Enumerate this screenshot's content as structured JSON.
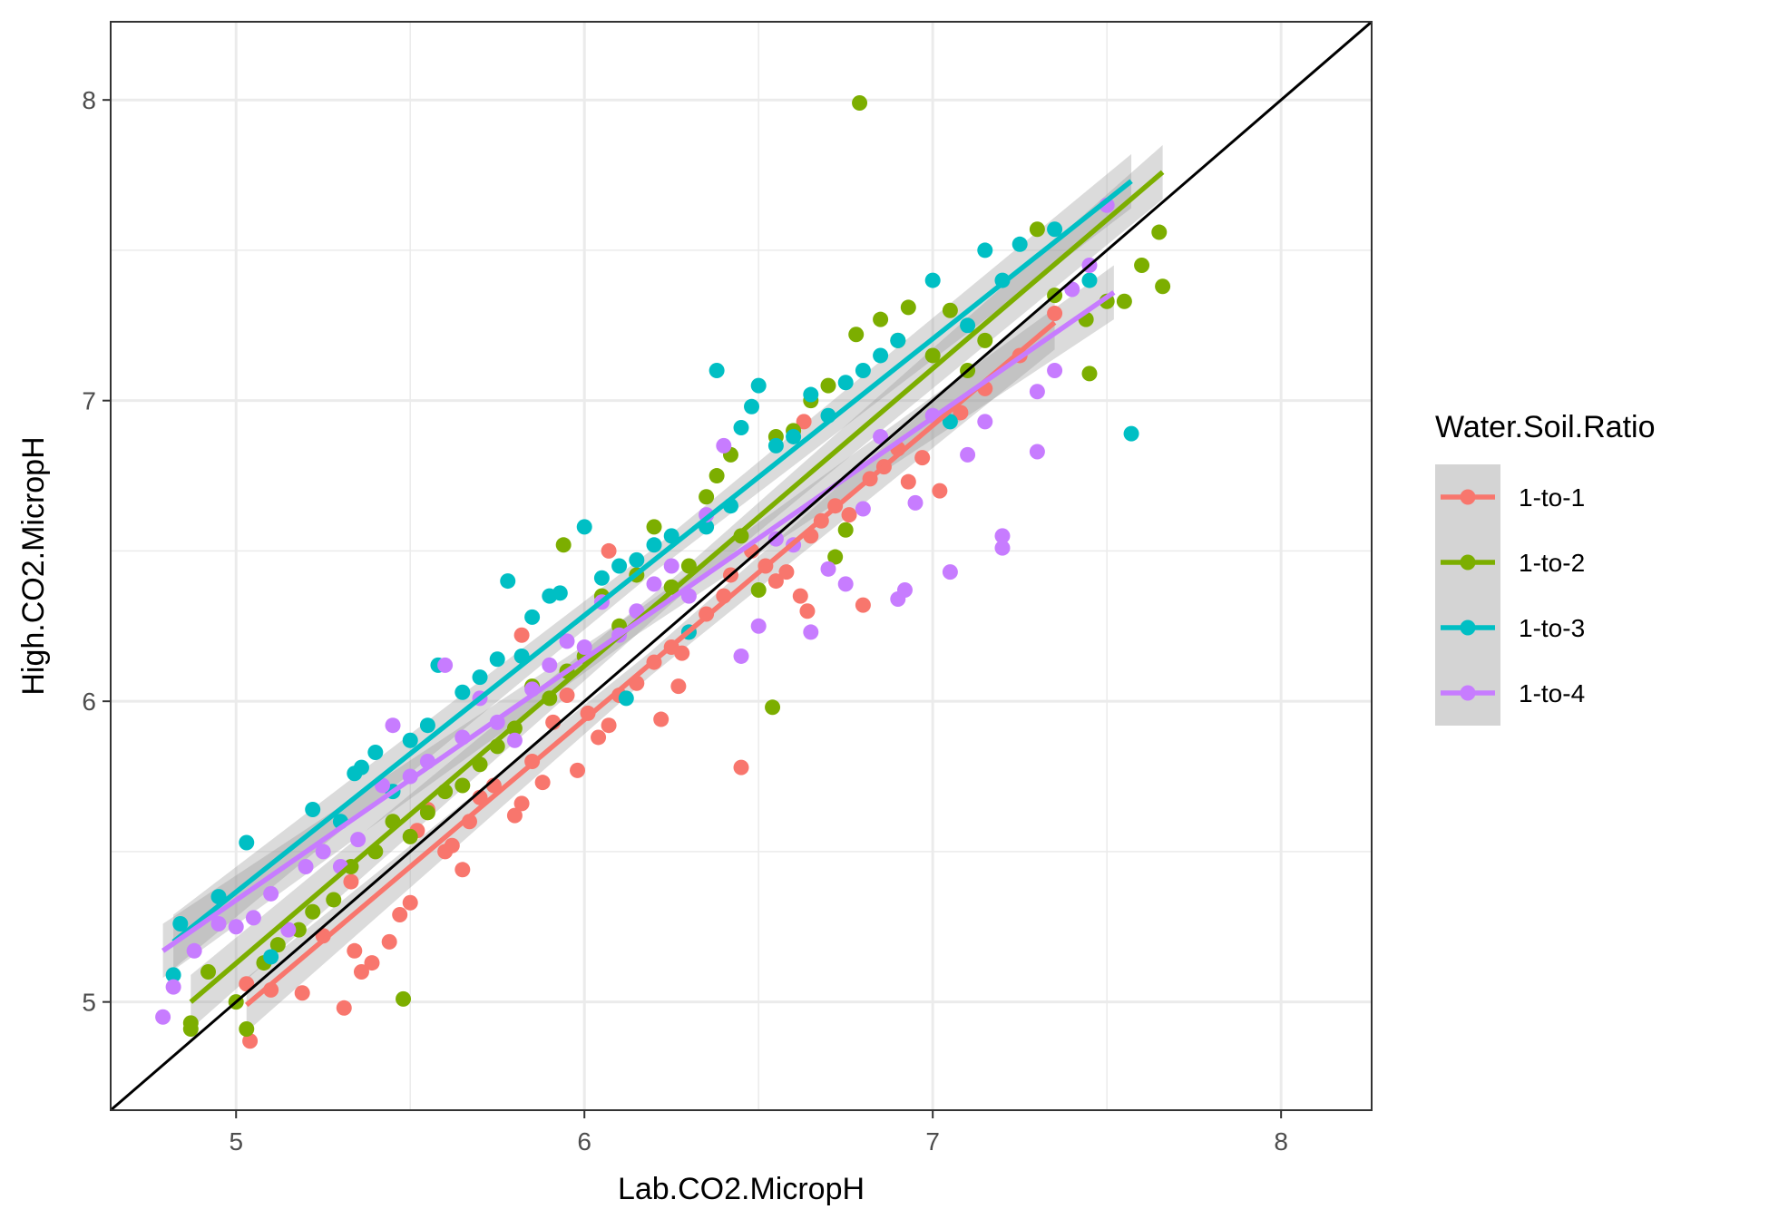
{
  "chart_data": {
    "type": "scatter",
    "xlabel": "Lab.CO2.MicropH",
    "ylabel": "High.CO2.MicropH",
    "xlim": [
      4.64,
      8.26
    ],
    "ylim": [
      4.64,
      8.26
    ],
    "x_ticks": [
      5,
      6,
      7,
      8
    ],
    "y_ticks": [
      5,
      6,
      7,
      8
    ],
    "x_tick_labels": [
      "5",
      "6",
      "7",
      "8"
    ],
    "y_tick_labels": [
      "5",
      "6",
      "7",
      "8"
    ],
    "grid": true,
    "reference_line": "y = x",
    "legend": {
      "title": "Water.Soil.Ratio",
      "placement": "right"
    },
    "series": [
      {
        "name": "1-to-1",
        "color": "#F8766D",
        "fit": {
          "x": [
            5.03,
            7.35
          ],
          "y": [
            4.99,
            7.26
          ]
        },
        "points": [
          [
            5.03,
            5.06
          ],
          [
            5.04,
            4.87
          ],
          [
            5.1,
            5.04
          ],
          [
            5.19,
            5.03
          ],
          [
            5.25,
            5.22
          ],
          [
            5.31,
            4.98
          ],
          [
            5.33,
            5.4
          ],
          [
            5.34,
            5.17
          ],
          [
            5.36,
            5.1
          ],
          [
            5.39,
            5.13
          ],
          [
            5.44,
            5.2
          ],
          [
            5.47,
            5.29
          ],
          [
            5.5,
            5.33
          ],
          [
            5.52,
            5.57
          ],
          [
            5.55,
            5.64
          ],
          [
            5.6,
            5.5
          ],
          [
            5.62,
            5.52
          ],
          [
            5.65,
            5.44
          ],
          [
            5.67,
            5.6
          ],
          [
            5.7,
            5.68
          ],
          [
            5.74,
            5.72
          ],
          [
            5.8,
            5.62
          ],
          [
            5.82,
            5.66
          ],
          [
            5.85,
            5.8
          ],
          [
            5.88,
            5.73
          ],
          [
            5.91,
            5.93
          ],
          [
            5.95,
            6.02
          ],
          [
            5.98,
            5.77
          ],
          [
            6.01,
            5.96
          ],
          [
            6.04,
            5.88
          ],
          [
            6.07,
            5.92
          ],
          [
            6.1,
            6.02
          ],
          [
            6.15,
            6.06
          ],
          [
            6.2,
            6.13
          ],
          [
            6.22,
            5.94
          ],
          [
            6.25,
            6.18
          ],
          [
            6.27,
            6.05
          ],
          [
            6.3,
            6.23
          ],
          [
            6.35,
            6.29
          ],
          [
            6.4,
            6.35
          ],
          [
            6.42,
            6.42
          ],
          [
            6.45,
            5.78
          ],
          [
            6.48,
            6.5
          ],
          [
            6.52,
            6.45
          ],
          [
            6.55,
            6.4
          ],
          [
            6.58,
            6.43
          ],
          [
            6.62,
            6.35
          ],
          [
            6.64,
            6.3
          ],
          [
            6.65,
            6.55
          ],
          [
            6.68,
            6.6
          ],
          [
            6.72,
            6.65
          ],
          [
            6.76,
            6.62
          ],
          [
            6.8,
            6.32
          ],
          [
            6.82,
            6.74
          ],
          [
            6.86,
            6.78
          ],
          [
            6.9,
            6.84
          ],
          [
            6.93,
            6.73
          ],
          [
            6.97,
            6.81
          ],
          [
            7.02,
            6.7
          ],
          [
            7.08,
            6.96
          ],
          [
            7.15,
            7.04
          ],
          [
            7.25,
            7.15
          ],
          [
            7.35,
            7.29
          ],
          [
            5.82,
            6.22
          ],
          [
            6.07,
            6.5
          ],
          [
            6.63,
            6.93
          ],
          [
            6.28,
            6.16
          ]
        ]
      },
      {
        "name": "1-to-2",
        "color": "#7CAE00",
        "fit": {
          "x": [
            4.87,
            7.66
          ],
          "y": [
            5.0,
            7.76
          ]
        },
        "points": [
          [
            4.87,
            4.93
          ],
          [
            4.87,
            4.91
          ],
          [
            4.92,
            5.1
          ],
          [
            5.0,
            5.0
          ],
          [
            5.03,
            4.91
          ],
          [
            5.08,
            5.13
          ],
          [
            5.12,
            5.19
          ],
          [
            5.18,
            5.24
          ],
          [
            5.22,
            5.3
          ],
          [
            5.28,
            5.34
          ],
          [
            5.33,
            5.45
          ],
          [
            5.4,
            5.5
          ],
          [
            5.45,
            5.6
          ],
          [
            5.48,
            5.01
          ],
          [
            5.5,
            5.55
          ],
          [
            5.55,
            5.63
          ],
          [
            5.6,
            5.7
          ],
          [
            5.65,
            5.72
          ],
          [
            5.7,
            5.79
          ],
          [
            5.75,
            5.85
          ],
          [
            5.8,
            5.91
          ],
          [
            5.85,
            6.05
          ],
          [
            5.9,
            6.01
          ],
          [
            5.94,
            6.52
          ],
          [
            5.95,
            6.1
          ],
          [
            6.0,
            6.15
          ],
          [
            6.05,
            6.35
          ],
          [
            6.1,
            6.25
          ],
          [
            6.15,
            6.42
          ],
          [
            6.2,
            6.58
          ],
          [
            6.25,
            6.38
          ],
          [
            6.3,
            6.45
          ],
          [
            6.35,
            6.68
          ],
          [
            6.38,
            6.75
          ],
          [
            6.42,
            6.82
          ],
          [
            6.45,
            6.55
          ],
          [
            6.5,
            6.37
          ],
          [
            6.54,
            5.98
          ],
          [
            6.55,
            6.88
          ],
          [
            6.6,
            6.9
          ],
          [
            6.65,
            7.0
          ],
          [
            6.7,
            7.05
          ],
          [
            6.72,
            6.48
          ],
          [
            6.75,
            6.57
          ],
          [
            6.78,
            7.22
          ],
          [
            6.79,
            7.99
          ],
          [
            6.85,
            7.27
          ],
          [
            6.9,
            7.2
          ],
          [
            6.93,
            7.31
          ],
          [
            7.0,
            7.15
          ],
          [
            7.05,
            7.3
          ],
          [
            7.1,
            7.1
          ],
          [
            7.15,
            7.2
          ],
          [
            7.3,
            7.57
          ],
          [
            7.35,
            7.35
          ],
          [
            7.44,
            7.27
          ],
          [
            7.45,
            7.09
          ],
          [
            7.5,
            7.33
          ],
          [
            7.55,
            7.33
          ],
          [
            7.6,
            7.45
          ],
          [
            7.65,
            7.56
          ],
          [
            7.66,
            7.38
          ]
        ]
      },
      {
        "name": "1-to-3",
        "color": "#00BFC4",
        "fit": {
          "x": [
            4.82,
            7.57
          ],
          "y": [
            5.2,
            7.73
          ]
        },
        "points": [
          [
            4.82,
            5.09
          ],
          [
            4.84,
            5.26
          ],
          [
            4.95,
            5.35
          ],
          [
            5.03,
            5.53
          ],
          [
            5.1,
            5.15
          ],
          [
            5.22,
            5.64
          ],
          [
            5.3,
            5.6
          ],
          [
            5.34,
            5.76
          ],
          [
            5.36,
            5.78
          ],
          [
            5.4,
            5.83
          ],
          [
            5.45,
            5.7
          ],
          [
            5.5,
            5.87
          ],
          [
            5.55,
            5.92
          ],
          [
            5.58,
            6.12
          ],
          [
            5.65,
            6.03
          ],
          [
            5.7,
            6.08
          ],
          [
            5.75,
            6.14
          ],
          [
            5.78,
            6.4
          ],
          [
            5.82,
            6.15
          ],
          [
            5.85,
            6.28
          ],
          [
            5.9,
            6.35
          ],
          [
            5.93,
            6.36
          ],
          [
            6.0,
            6.58
          ],
          [
            6.05,
            6.41
          ],
          [
            6.1,
            6.45
          ],
          [
            6.15,
            6.47
          ],
          [
            6.2,
            6.52
          ],
          [
            6.25,
            6.55
          ],
          [
            6.3,
            6.23
          ],
          [
            6.35,
            6.58
          ],
          [
            6.38,
            7.1
          ],
          [
            6.42,
            6.65
          ],
          [
            6.45,
            6.91
          ],
          [
            6.48,
            6.98
          ],
          [
            6.5,
            7.05
          ],
          [
            6.55,
            6.85
          ],
          [
            6.6,
            6.88
          ],
          [
            6.65,
            7.02
          ],
          [
            6.7,
            6.95
          ],
          [
            6.75,
            7.06
          ],
          [
            6.8,
            7.1
          ],
          [
            6.85,
            7.15
          ],
          [
            6.9,
            7.2
          ],
          [
            7.0,
            7.4
          ],
          [
            7.05,
            6.93
          ],
          [
            7.1,
            7.25
          ],
          [
            7.15,
            7.5
          ],
          [
            7.2,
            7.4
          ],
          [
            7.25,
            7.52
          ],
          [
            7.35,
            7.57
          ],
          [
            7.45,
            7.4
          ],
          [
            7.57,
            6.89
          ],
          [
            6.12,
            6.01
          ]
        ]
      },
      {
        "name": "1-to-4",
        "color": "#C77CFF",
        "fit": {
          "x": [
            4.79,
            7.52
          ],
          "y": [
            5.17,
            7.36
          ]
        },
        "points": [
          [
            4.79,
            4.95
          ],
          [
            4.82,
            5.05
          ],
          [
            4.88,
            5.17
          ],
          [
            4.95,
            5.26
          ],
          [
            5.0,
            5.25
          ],
          [
            5.05,
            5.28
          ],
          [
            5.1,
            5.36
          ],
          [
            5.15,
            5.24
          ],
          [
            5.2,
            5.45
          ],
          [
            5.25,
            5.5
          ],
          [
            5.3,
            5.45
          ],
          [
            5.35,
            5.54
          ],
          [
            5.42,
            5.72
          ],
          [
            5.45,
            5.92
          ],
          [
            5.5,
            5.75
          ],
          [
            5.55,
            5.8
          ],
          [
            5.6,
            6.12
          ],
          [
            5.65,
            5.88
          ],
          [
            5.7,
            6.01
          ],
          [
            5.75,
            5.93
          ],
          [
            5.8,
            5.87
          ],
          [
            5.85,
            6.04
          ],
          [
            5.9,
            6.12
          ],
          [
            5.95,
            6.2
          ],
          [
            6.0,
            6.18
          ],
          [
            6.05,
            6.33
          ],
          [
            6.1,
            6.22
          ],
          [
            6.15,
            6.3
          ],
          [
            6.2,
            6.39
          ],
          [
            6.25,
            6.45
          ],
          [
            6.3,
            6.35
          ],
          [
            6.35,
            6.62
          ],
          [
            6.4,
            6.85
          ],
          [
            6.45,
            6.15
          ],
          [
            6.5,
            6.25
          ],
          [
            6.55,
            6.54
          ],
          [
            6.6,
            6.52
          ],
          [
            6.65,
            6.23
          ],
          [
            6.7,
            6.44
          ],
          [
            6.75,
            6.39
          ],
          [
            6.8,
            6.64
          ],
          [
            6.85,
            6.88
          ],
          [
            6.9,
            6.34
          ],
          [
            6.92,
            6.37
          ],
          [
            6.95,
            6.66
          ],
          [
            7.0,
            6.95
          ],
          [
            7.05,
            6.43
          ],
          [
            7.1,
            6.82
          ],
          [
            7.15,
            6.93
          ],
          [
            7.2,
            6.55
          ],
          [
            7.2,
            6.51
          ],
          [
            7.3,
            6.83
          ],
          [
            7.3,
            7.03
          ],
          [
            7.35,
            7.1
          ],
          [
            7.4,
            7.37
          ],
          [
            7.45,
            7.45
          ],
          [
            7.5,
            7.65
          ]
        ]
      }
    ]
  }
}
